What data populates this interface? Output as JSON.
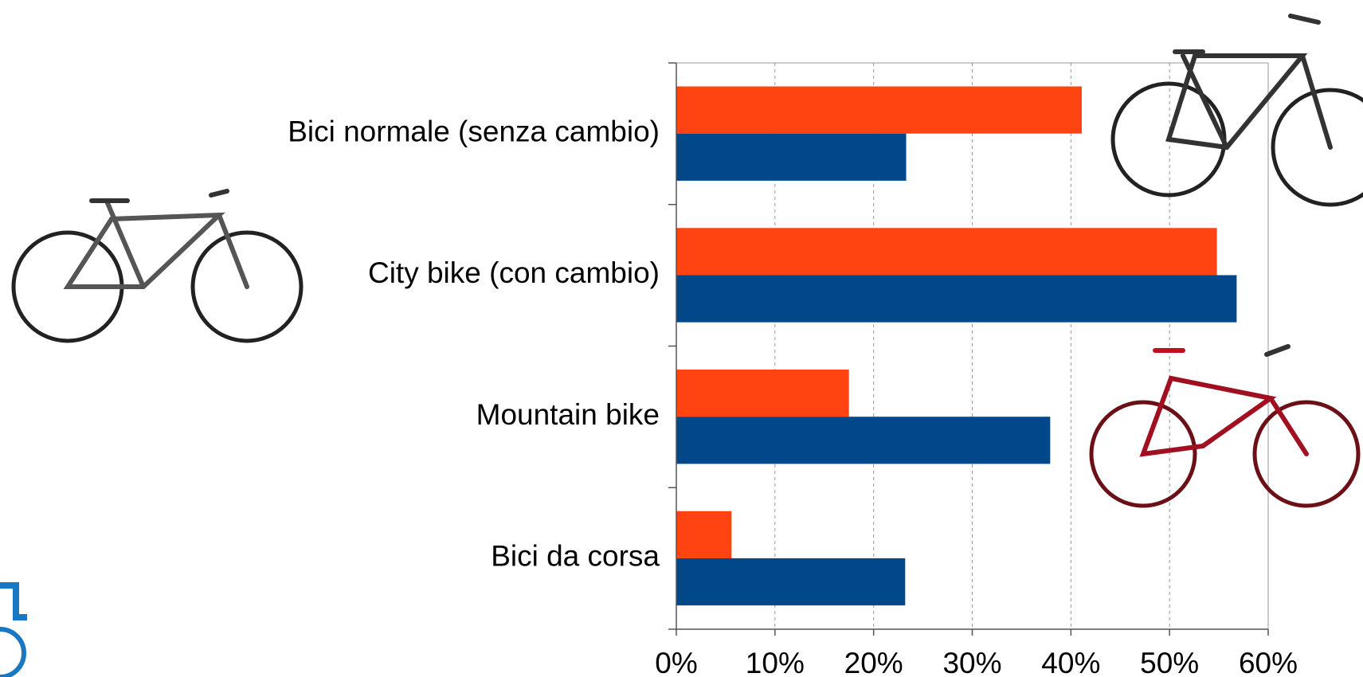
{
  "chart_data": {
    "type": "bar",
    "orientation": "horizontal",
    "categories": [
      "Bici normale (senza cambio)",
      "City bike (con cambio)",
      "Mountain bike",
      "Bici da corsa"
    ],
    "series": [
      {
        "color": "#ff4411",
        "values": [
          41.1,
          54.8,
          17.5,
          5.6
        ]
      },
      {
        "color": "#01488a",
        "values": [
          23.3,
          56.8,
          37.9,
          23.2
        ]
      }
    ],
    "xlim": [
      0,
      60
    ],
    "xticks": [
      {
        "value": 0,
        "label": "0%"
      },
      {
        "value": 10,
        "label": "10%"
      },
      {
        "value": 20,
        "label": "20%"
      },
      {
        "value": 30,
        "label": "30%"
      },
      {
        "value": 40,
        "label": "40%"
      },
      {
        "value": 50,
        "label": "50%"
      },
      {
        "value": 60,
        "label": "60%"
      }
    ],
    "grid": true
  }
}
